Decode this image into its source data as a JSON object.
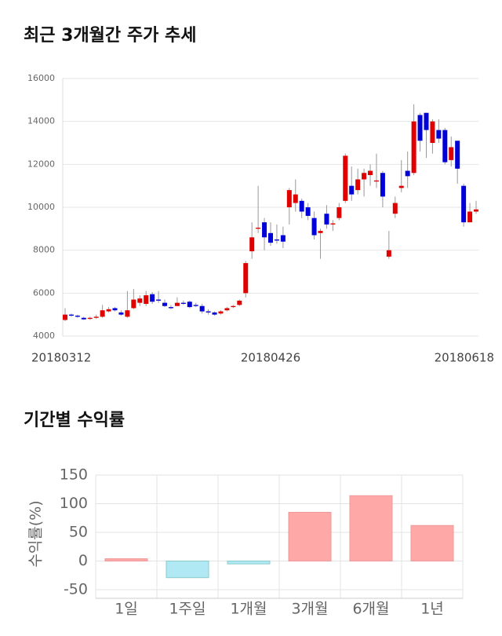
{
  "chart_data": [
    {
      "type": "candlestick",
      "title": "최근 3개월간 주가 추세",
      "categories": [
        "20180312",
        null,
        null,
        null,
        null,
        null,
        null,
        null,
        null,
        null,
        null,
        null,
        null,
        null,
        null,
        null,
        null,
        null,
        null,
        null,
        null,
        null,
        null,
        null,
        null,
        null,
        null,
        null,
        null,
        null,
        null,
        null,
        null,
        "20180426",
        null,
        null,
        null,
        null,
        null,
        null,
        null,
        null,
        null,
        null,
        null,
        null,
        null,
        null,
        null,
        null,
        null,
        null,
        null,
        null,
        null,
        null,
        null,
        null,
        null,
        null,
        null,
        null,
        null,
        null,
        null,
        null,
        "20180618"
      ],
      "open": [
        4750,
        5000,
        4950,
        4850,
        4800,
        4850,
        4900,
        5150,
        5300,
        5100,
        4900,
        5300,
        5550,
        5500,
        5950,
        5700,
        5550,
        5350,
        5400,
        5550,
        5600,
        5450,
        5400,
        5150,
        5100,
        5050,
        5200,
        5350,
        5450,
        6000,
        7950,
        9000,
        9300,
        8800,
        8500,
        8700,
        10000,
        10200,
        10300,
        10000,
        9500,
        8800,
        9700,
        9200,
        9500,
        10300,
        11000,
        10800,
        11300,
        11500,
        11200,
        11600,
        7700,
        9700,
        10900,
        11700,
        11600,
        14300,
        14400,
        13000,
        13600,
        13600,
        12200,
        13100,
        11000,
        9300,
        9800
      ],
      "high": [
        5300,
        5050,
        5000,
        4900,
        4900,
        5000,
        5450,
        5350,
        5350,
        5200,
        6100,
        6200,
        5900,
        6100,
        6050,
        6100,
        5700,
        5450,
        5800,
        5650,
        5650,
        5550,
        5500,
        5250,
        5150,
        5200,
        5350,
        5450,
        5700,
        7500,
        9300,
        11000,
        9500,
        9300,
        9200,
        9100,
        10900,
        11300,
        10400,
        10200,
        9800,
        9000,
        10100,
        9400,
        10200,
        12500,
        11900,
        11800,
        11800,
        12000,
        12500,
        11700,
        8900,
        10500,
        12200,
        12600,
        14800,
        14400,
        14400,
        14100,
        14100,
        13700,
        13300,
        13100,
        11100,
        10200,
        10300
      ],
      "low": [
        4700,
        4900,
        4850,
        4750,
        4750,
        4800,
        4850,
        5100,
        5150,
        4950,
        4850,
        5250,
        5400,
        5400,
        5500,
        5550,
        5350,
        5250,
        5400,
        5450,
        5300,
        5350,
        5050,
        5000,
        4950,
        5000,
        5150,
        5300,
        5400,
        5800,
        7600,
        8800,
        8000,
        8200,
        8300,
        8100,
        9200,
        9800,
        9500,
        9400,
        8500,
        7600,
        9000,
        8900,
        9400,
        10200,
        10300,
        10600,
        10500,
        11000,
        10900,
        10000,
        7600,
        9500,
        10700,
        10900,
        11500,
        12600,
        12300,
        12500,
        13000,
        12000,
        11900,
        11100,
        9100,
        9300,
        9700
      ],
      "close": [
        5000,
        4950,
        4900,
        4780,
        4850,
        4900,
        5200,
        5250,
        5200,
        5000,
        5200,
        5700,
        5750,
        5900,
        5600,
        5650,
        5400,
        5300,
        5550,
        5500,
        5350,
        5400,
        5150,
        5100,
        5000,
        5150,
        5300,
        5400,
        5650,
        7400,
        8600,
        9050,
        8600,
        8350,
        8450,
        8400,
        10800,
        10600,
        9800,
        9600,
        8700,
        8900,
        9200,
        9250,
        10000,
        12400,
        10600,
        11300,
        11600,
        11700,
        11250,
        10500,
        8000,
        10200,
        11000,
        11450,
        14000,
        13100,
        13600,
        14000,
        13200,
        12100,
        12800,
        11800,
        9300,
        9800,
        9900
      ],
      "up_color": "#e00000",
      "down_color": "#0000d8",
      "ylim": [
        4000,
        16000
      ],
      "yticks": [
        4000,
        6000,
        8000,
        10000,
        12000,
        14000,
        16000
      ],
      "grid": true
    },
    {
      "type": "bar",
      "title": "기간별 수익률",
      "y_label": "수익률(%)",
      "categories": [
        "1일",
        "1주일",
        "1개월",
        "3개월",
        "6개월",
        "1년"
      ],
      "values": [
        4,
        -29,
        -5,
        85,
        114,
        62
      ],
      "colors": [
        "#ffa8a8",
        "#b0e8f4",
        "#b0e8f4",
        "#ffa8a8",
        "#ffa8a8",
        "#ffa8a8"
      ],
      "ylim": [
        -65,
        150
      ],
      "yticks": [
        -50,
        0,
        50,
        100,
        150
      ],
      "grid": true
    }
  ]
}
